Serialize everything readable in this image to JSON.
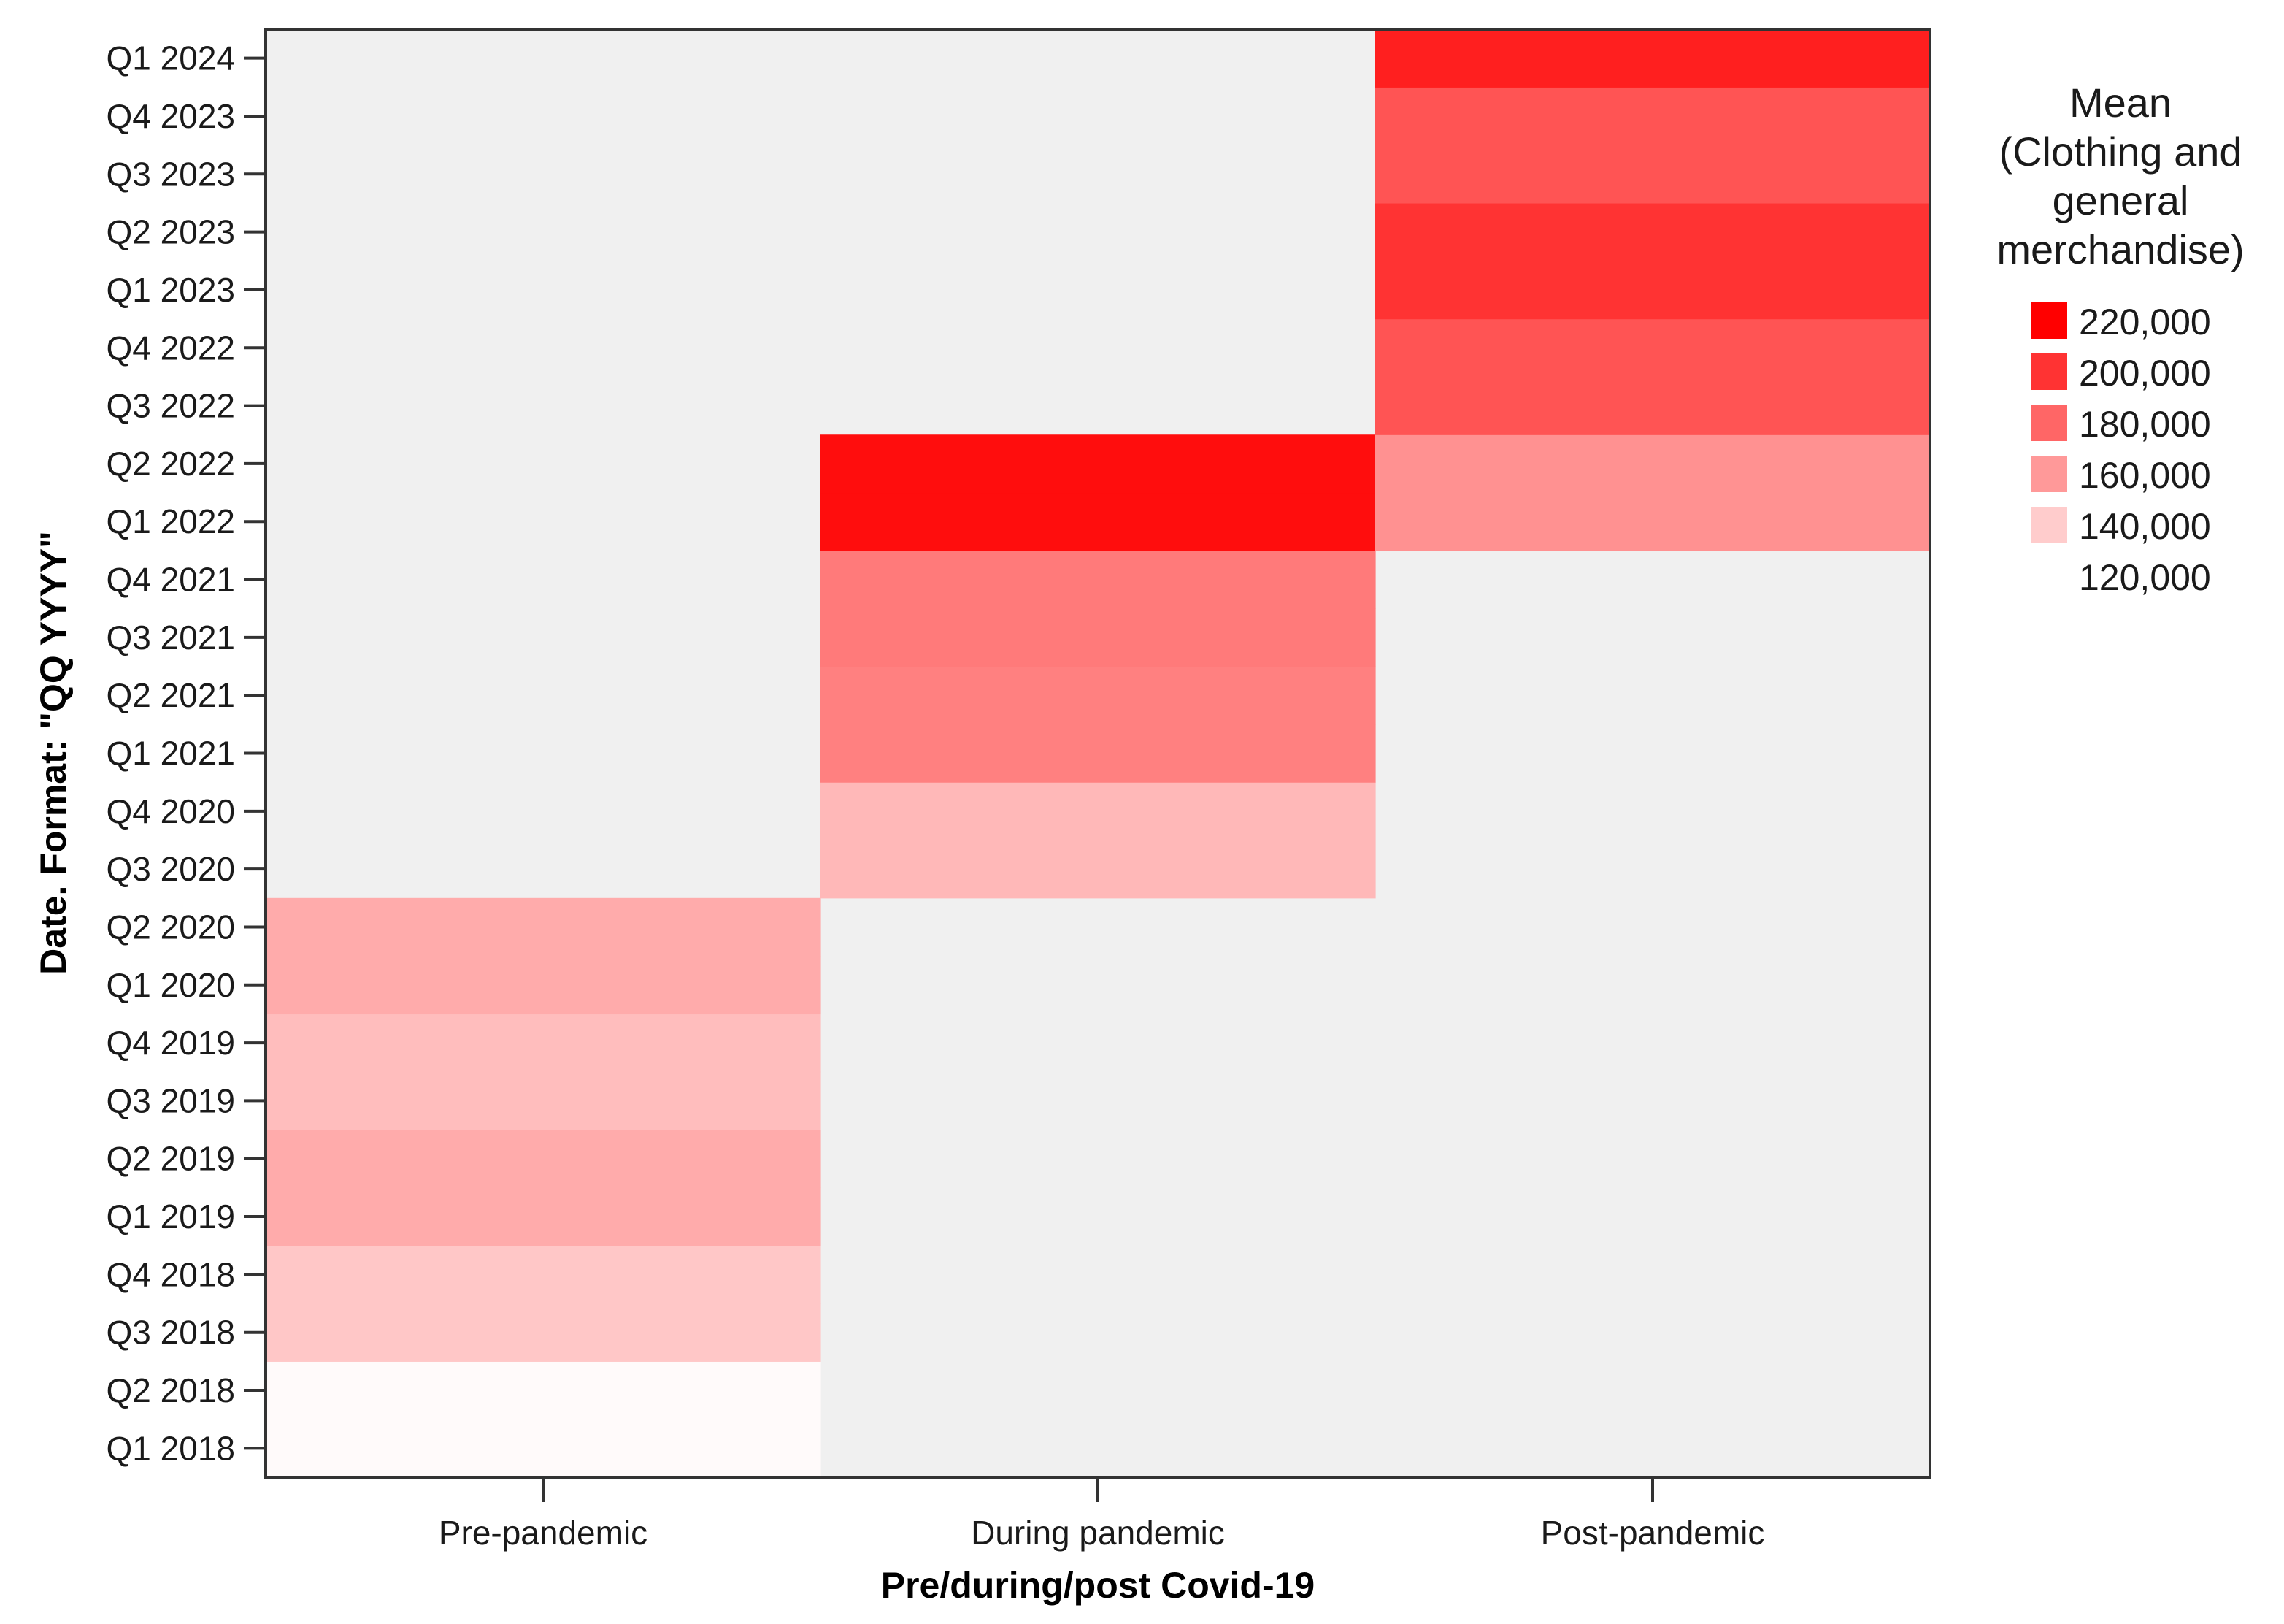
{
  "chart_data": {
    "type": "heatmap",
    "xlabel": "Pre/during/post Covid-19",
    "ylabel": "Date.  Format:  \"QQ YYYY\"",
    "x_categories": [
      "Pre-pandemic",
      "During pandemic",
      "Post-pandemic"
    ],
    "y_categories": [
      "Q1 2024",
      "Q4 2023",
      "Q3 2023",
      "Q2 2023",
      "Q1 2023",
      "Q4 2022",
      "Q3 2022",
      "Q2 2022",
      "Q1 2022",
      "Q4 2021",
      "Q3 2021",
      "Q2 2021",
      "Q1 2021",
      "Q4 2020",
      "Q3 2020",
      "Q2 2020",
      "Q1 2020",
      "Q4 2019",
      "Q3 2019",
      "Q2 2019",
      "Q1 2019",
      "Q4 2018",
      "Q3 2018",
      "Q2 2018",
      "Q1 2018"
    ],
    "cells": [
      {
        "x": "Pre-pandemic",
        "y": "Q1 2018",
        "value": 122000
      },
      {
        "x": "Pre-pandemic",
        "y": "Q2 2018",
        "value": 122000
      },
      {
        "x": "Pre-pandemic",
        "y": "Q3 2018",
        "value": 142000
      },
      {
        "x": "Pre-pandemic",
        "y": "Q4 2018",
        "value": 142000
      },
      {
        "x": "Pre-pandemic",
        "y": "Q1 2019",
        "value": 153000
      },
      {
        "x": "Pre-pandemic",
        "y": "Q2 2019",
        "value": 153000
      },
      {
        "x": "Pre-pandemic",
        "y": "Q3 2019",
        "value": 146000
      },
      {
        "x": "Pre-pandemic",
        "y": "Q4 2019",
        "value": 146000
      },
      {
        "x": "Pre-pandemic",
        "y": "Q1 2020",
        "value": 153000
      },
      {
        "x": "Pre-pandemic",
        "y": "Q2 2020",
        "value": 153000
      },
      {
        "x": "During pandemic",
        "y": "Q3 2020",
        "value": 148000
      },
      {
        "x": "During pandemic",
        "y": "Q4 2020",
        "value": 148000
      },
      {
        "x": "During pandemic",
        "y": "Q1 2021",
        "value": 170000
      },
      {
        "x": "During pandemic",
        "y": "Q2 2021",
        "value": 170000
      },
      {
        "x": "During pandemic",
        "y": "Q3 2021",
        "value": 172000
      },
      {
        "x": "During pandemic",
        "y": "Q4 2021",
        "value": 172000
      },
      {
        "x": "During pandemic",
        "y": "Q1 2022",
        "value": 215000
      },
      {
        "x": "During pandemic",
        "y": "Q2 2022",
        "value": 215000
      },
      {
        "x": "Post-pandemic",
        "y": "Q1 2022",
        "value": 163000
      },
      {
        "x": "Post-pandemic",
        "y": "Q2 2022",
        "value": 163000
      },
      {
        "x": "Post-pandemic",
        "y": "Q3 2022",
        "value": 187000
      },
      {
        "x": "Post-pandemic",
        "y": "Q4 2022",
        "value": 187000
      },
      {
        "x": "Post-pandemic",
        "y": "Q1 2023",
        "value": 200000
      },
      {
        "x": "Post-pandemic",
        "y": "Q2 2023",
        "value": 200000
      },
      {
        "x": "Post-pandemic",
        "y": "Q3 2023",
        "value": 187000
      },
      {
        "x": "Post-pandemic",
        "y": "Q4 2023",
        "value": 187000
      },
      {
        "x": "Post-pandemic",
        "y": "Q1 2024",
        "value": 208000
      }
    ],
    "color_scale": {
      "title_lines": [
        "Mean",
        "(Clothing and",
        "general",
        "merchandise)"
      ],
      "min": 120000,
      "max": 220000,
      "min_color": "#ffffff",
      "max_color": "#ff0000",
      "legend_items": [
        {
          "label": "220,000",
          "value": 220000
        },
        {
          "label": "200,000",
          "value": 200000
        },
        {
          "label": "180,000",
          "value": 180000
        },
        {
          "label": "160,000",
          "value": 160000
        },
        {
          "label": "140,000",
          "value": 140000
        },
        {
          "label": "120,000",
          "value": 120000
        }
      ]
    },
    "empty_cell_color": "#f0f0f0",
    "legend_position": "right",
    "grid": false
  }
}
